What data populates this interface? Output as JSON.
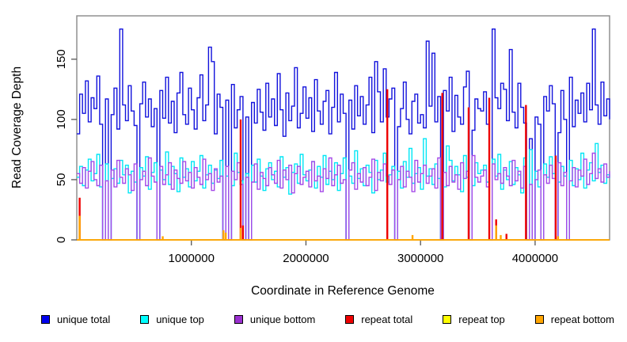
{
  "chart_data": {
    "type": "line",
    "subtype": "step-coverage",
    "title": "",
    "xlabel": "Coordinate in Reference Genome",
    "ylabel": "Read Coverage Depth",
    "xlim": [
      0,
      4650000
    ],
    "ylim": [
      0,
      186
    ],
    "x_ticks": [
      1000000,
      2000000,
      3000000,
      4000000
    ],
    "y_ticks": [
      0,
      50,
      100,
      150
    ],
    "grid": false,
    "legend_position": "bottom",
    "background": "#ffffff",
    "box_color": "#888888",
    "tick_color": "#555555",
    "text_color": "#000000",
    "x_start": 0,
    "x_step": 25000,
    "series": [
      {
        "name": "unique total",
        "color": "#1212DC",
        "values": [
          88,
          121,
          105,
          132,
          98,
          118,
          109,
          136,
          96,
          0,
          117,
          0,
          104,
          126,
          92,
          175,
          112,
          99,
          128,
          107,
          95,
          0,
          113,
          131,
          102,
          117,
          94,
          109,
          0,
          124,
          101,
          135,
          97,
          115,
          89,
          122,
          139,
          104,
          96,
          126,
          108,
          92,
          118,
          137,
          99,
          112,
          160,
          148,
          88,
          121,
          110,
          0,
          116,
          0,
          129,
          93,
          108,
          119,
          0,
          102,
          0,
          114,
          97,
          125,
          106,
          91,
          130,
          102,
          117,
          95,
          138,
          108,
          86,
          122,
          99,
          111,
          143,
          93,
          105,
          127,
          101,
          118,
          90,
          133,
          107,
          96,
          115,
          124,
          88,
          110,
          139,
          98,
          121,
          105,
          0,
          116,
          92,
          128,
          103,
          119,
          96,
          112,
          135,
          89,
          148,
          123,
          98,
          142,
          102,
          117,
          126,
          0,
          94,
          109,
          131,
          100,
          88,
          115,
          121,
          97,
          104,
          93,
          165,
          111,
          155,
          98,
          119,
          0,
          124,
          107,
          135,
          90,
          120,
          102,
          96,
          127,
          140,
          0,
          91,
          117,
          109,
          107,
          123,
          96,
          0,
          175,
          118,
          109,
          130,
          125,
          99,
          158,
          106,
          93,
          130,
          110,
          97,
          0,
          84,
          0,
          102,
          96,
          0,
          119,
          107,
          128,
          113,
          0,
          89,
          124,
          100,
          0,
          135,
          94,
          116,
          105,
          122,
          98,
          130,
          108,
          175,
          112,
          96,
          131,
          103,
          117,
          100
        ]
      },
      {
        "name": "unique top",
        "color": "#00E6F5",
        "values": [
          52,
          61,
          45,
          58,
          67,
          49,
          55,
          71,
          44,
          0,
          63,
          0,
          51,
          59,
          47,
          66,
          54,
          62,
          39,
          57,
          48,
          0,
          60,
          53,
          69,
          42,
          56,
          64,
          0,
          58,
          50,
          73,
          46,
          61,
          55,
          40,
          68,
          52,
          59,
          44,
          65,
          49,
          57,
          70,
          43,
          54,
          62,
          47,
          58,
          51,
          66,
          0,
          53,
          0,
          45,
          72,
          56,
          49,
          0,
          55,
          0,
          62,
          48,
          67,
          53,
          41,
          59,
          64,
          50,
          57,
          44,
          69,
          52,
          60,
          38,
          56,
          63,
          47,
          71,
          54,
          49,
          58,
          65,
          43,
          61,
          52,
          70,
          46,
          57,
          50,
          64,
          41,
          55,
          68,
          0,
          53,
          47,
          74,
          51,
          59,
          45,
          62,
          56,
          39,
          66,
          50,
          58,
          72,
          48,
          54,
          61,
          0,
          57,
          43,
          65,
          52,
          76,
          47,
          55,
          60,
          42,
          84,
          53,
          59,
          46,
          63,
          51,
          0,
          44,
          78,
          66,
          49,
          61,
          54,
          40,
          70,
          52,
          0,
          45,
          64,
          55,
          58,
          62,
          48,
          0,
          67,
          53,
          71,
          42,
          58,
          50,
          65,
          46,
          60,
          54,
          39,
          68,
          0,
          75,
          0,
          57,
          44,
          0,
          63,
          52,
          69,
          55,
          0,
          48,
          61,
          53,
          0,
          66,
          45,
          59,
          50,
          72,
          43,
          58,
          64,
          49,
          80,
          56,
          62,
          47,
          54,
          51
        ]
      },
      {
        "name": "unique bottom",
        "color": "#A549E8",
        "values": [
          55,
          47,
          60,
          43,
          57,
          65,
          50,
          45,
          62,
          0,
          49,
          0,
          58,
          44,
          66,
          52,
          47,
          59,
          54,
          41,
          63,
          0,
          50,
          57,
          45,
          68,
          53,
          48,
          0,
          61,
          46,
          54,
          64,
          42,
          58,
          51,
          47,
          65,
          49,
          56,
          43,
          60,
          52,
          46,
          67,
          50,
          55,
          41,
          59,
          48,
          53,
          0,
          61,
          0,
          57,
          50,
          64,
          46,
          0,
          52,
          0,
          48,
          63,
          42,
          56,
          51,
          45,
          60,
          54,
          47,
          66,
          43,
          58,
          50,
          62,
          39,
          55,
          61,
          46,
          52,
          57,
          44,
          65,
          49,
          53,
          40,
          59,
          51,
          68,
          45,
          54,
          62,
          47,
          50,
          0,
          58,
          64,
          42,
          55,
          48,
          60,
          45,
          52,
          67,
          41,
          56,
          49,
          63,
          53,
          46,
          58,
          0,
          50,
          61,
          44,
          57,
          52,
          40,
          66,
          48,
          55,
          62,
          47,
          53,
          59,
          43,
          68,
          0,
          56,
          45,
          61,
          48,
          54,
          42,
          64,
          51,
          57,
          0,
          70,
          52,
          48,
          53,
          58,
          44,
          0,
          63,
          50,
          55,
          47,
          60,
          53,
          45,
          66,
          49,
          57,
          43,
          61,
          0,
          46,
          0,
          50,
          58,
          0,
          54,
          47,
          62,
          51,
          0,
          64,
          45,
          56,
          0,
          49,
          60,
          44,
          58,
          53,
          67,
          46,
          55,
          72,
          51,
          59,
          48,
          63,
          52,
          57
        ]
      },
      {
        "name": "repeat total",
        "color": "#EE0000",
        "baseline": 0,
        "spikes": [
          {
            "x": 25000,
            "v": 35
          },
          {
            "x": 1430000,
            "v": 100
          },
          {
            "x": 1450000,
            "v": 12
          },
          {
            "x": 2710000,
            "v": 125
          },
          {
            "x": 3190000,
            "v": 122
          },
          {
            "x": 3420000,
            "v": 110
          },
          {
            "x": 3600000,
            "v": 118
          },
          {
            "x": 3660000,
            "v": 17
          },
          {
            "x": 3750000,
            "v": 5
          },
          {
            "x": 3920000,
            "v": 112
          },
          {
            "x": 4180000,
            "v": 70
          }
        ]
      },
      {
        "name": "repeat top",
        "color": "#FFFF00",
        "baseline": 0,
        "spikes": []
      },
      {
        "name": "repeat bottom",
        "color": "#FFA500",
        "baseline": 0,
        "spikes": [
          {
            "x": 25000,
            "v": 20
          },
          {
            "x": 750000,
            "v": 3
          },
          {
            "x": 1280000,
            "v": 8
          },
          {
            "x": 1300000,
            "v": 6
          },
          {
            "x": 1430000,
            "v": 10
          },
          {
            "x": 2930000,
            "v": 4
          },
          {
            "x": 3660000,
            "v": 12
          },
          {
            "x": 3700000,
            "v": 4
          },
          {
            "x": 4200000,
            "v": 3
          }
        ]
      }
    ],
    "legend": [
      {
        "label": "unique total",
        "swatch_color": "#0000EE"
      },
      {
        "label": "unique top",
        "swatch_color": "#00FFFF"
      },
      {
        "label": "unique bottom",
        "swatch_color": "#9B30D0"
      },
      {
        "label": "repeat total",
        "swatch_color": "#EE0000"
      },
      {
        "label": "repeat top",
        "swatch_color": "#FFFF00"
      },
      {
        "label": "repeat bottom",
        "swatch_color": "#FFA500"
      }
    ]
  }
}
